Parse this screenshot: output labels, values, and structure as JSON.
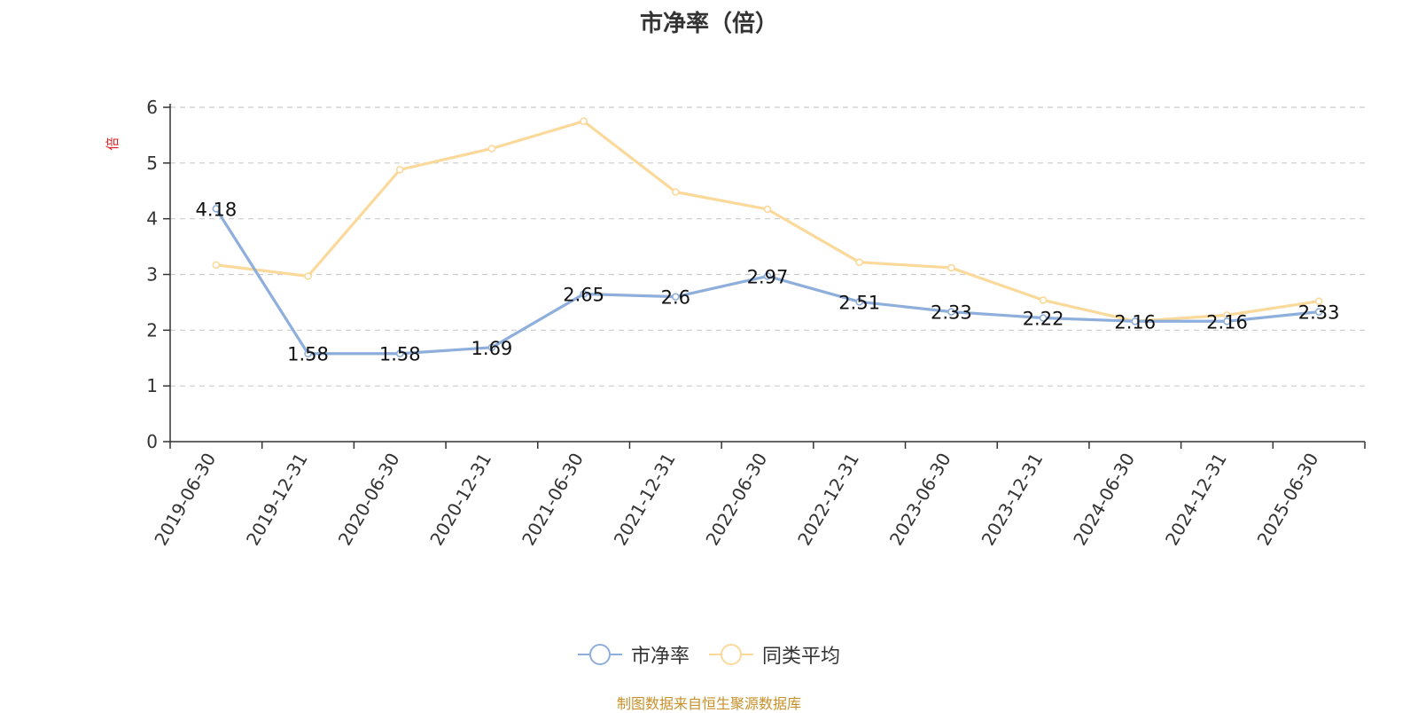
{
  "chart_data": {
    "type": "line",
    "title": "市净率（倍）",
    "ylabel": "倍",
    "xlabel": "",
    "ylim": [
      0,
      6
    ],
    "yticks": [
      0,
      1,
      2,
      3,
      4,
      5,
      6
    ],
    "grid": true,
    "legend_position": "bottom",
    "categories": [
      "2019-06-30",
      "2019-12-31",
      "2020-06-30",
      "2020-12-31",
      "2021-06-30",
      "2021-12-31",
      "2022-06-30",
      "2022-12-31",
      "2023-06-30",
      "2023-12-31",
      "2024-06-30",
      "2024-12-31",
      "2025-06-30"
    ],
    "series": [
      {
        "name": "市净率",
        "color": "#8eaedb",
        "show_labels": true,
        "values": [
          4.18,
          1.58,
          1.58,
          1.69,
          2.65,
          2.6,
          2.97,
          2.51,
          2.33,
          2.22,
          2.16,
          2.16,
          2.33
        ]
      },
      {
        "name": "同类平均",
        "color": "#fad99a",
        "show_labels": false,
        "values": [
          3.17,
          2.97,
          4.88,
          5.26,
          5.75,
          4.48,
          4.17,
          3.22,
          3.12,
          2.54,
          2.16,
          2.27,
          2.52
        ]
      }
    ],
    "source_note": "制图数据来自恒生聚源数据库"
  }
}
